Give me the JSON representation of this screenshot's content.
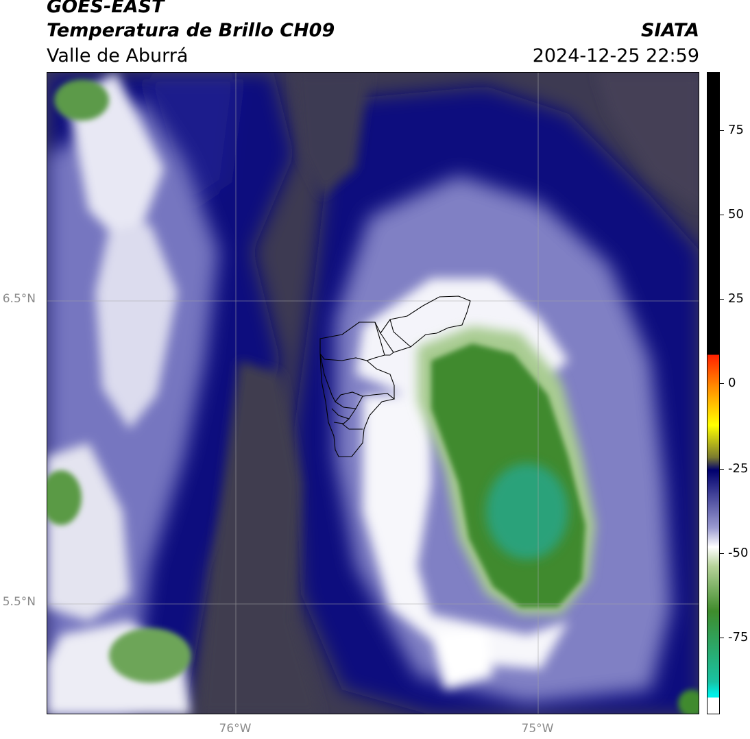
{
  "header": {
    "satellite": "GOES-EAST",
    "product": "Temperatura de Brillo CH09",
    "region": "Valle de Aburrá",
    "organization": "SIATA",
    "datetime": "2024-12-25 22:59"
  },
  "map": {
    "lat_labels": [
      "6.5°N",
      "5.5°N"
    ],
    "lon_labels": [
      "76°W",
      "75°W"
    ]
  },
  "colorbar": {
    "ticks": [
      "75",
      "50",
      "25",
      "0",
      "-25",
      "-50",
      "-75"
    ],
    "range": [
      -95,
      92
    ],
    "colors": {
      "warm": "#000000",
      "hot": "#ff2000",
      "orange": "#ff8c00",
      "yellow": "#ffff00",
      "olive": "#7b7b2e",
      "dark_navy": "#00006e",
      "periwinkle": "#9a9ad0",
      "white": "#ffffff",
      "pale_green": "#b6d39a",
      "green": "#3f8c2c",
      "teal": "#19c2a2",
      "cyan": "#00f0e8"
    }
  }
}
